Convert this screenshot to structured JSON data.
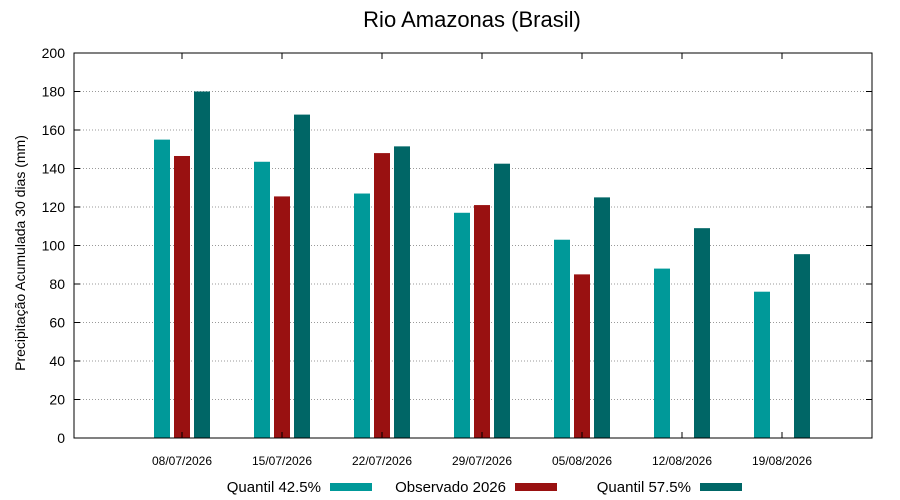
{
  "chart_data": {
    "type": "bar",
    "title": "Rio Amazonas (Brasil)",
    "xlabel": "",
    "ylabel": "Precipitação Acumulada 30 dias (mm)",
    "ylim": [
      0,
      200
    ],
    "yticks": [
      0,
      20,
      40,
      60,
      80,
      100,
      120,
      140,
      160,
      180,
      200
    ],
    "grid": true,
    "legend_position": "bottom",
    "categories": [
      "08/07/2026",
      "15/07/2026",
      "22/07/2026",
      "29/07/2026",
      "05/08/2026",
      "12/08/2026",
      "19/08/2026"
    ],
    "series": [
      {
        "name": "Quantil 42.5%",
        "color": "#009999",
        "values": [
          155,
          143.5,
          127,
          117,
          103,
          88,
          76
        ]
      },
      {
        "name": "Observado 2026",
        "color": "#991111",
        "values": [
          146.5,
          125.5,
          148,
          121,
          85,
          null,
          null
        ]
      },
      {
        "name": "Quantil 57.5%",
        "color": "#006666",
        "values": [
          180,
          168,
          151.5,
          142.5,
          125,
          109,
          95.5
        ]
      }
    ]
  }
}
